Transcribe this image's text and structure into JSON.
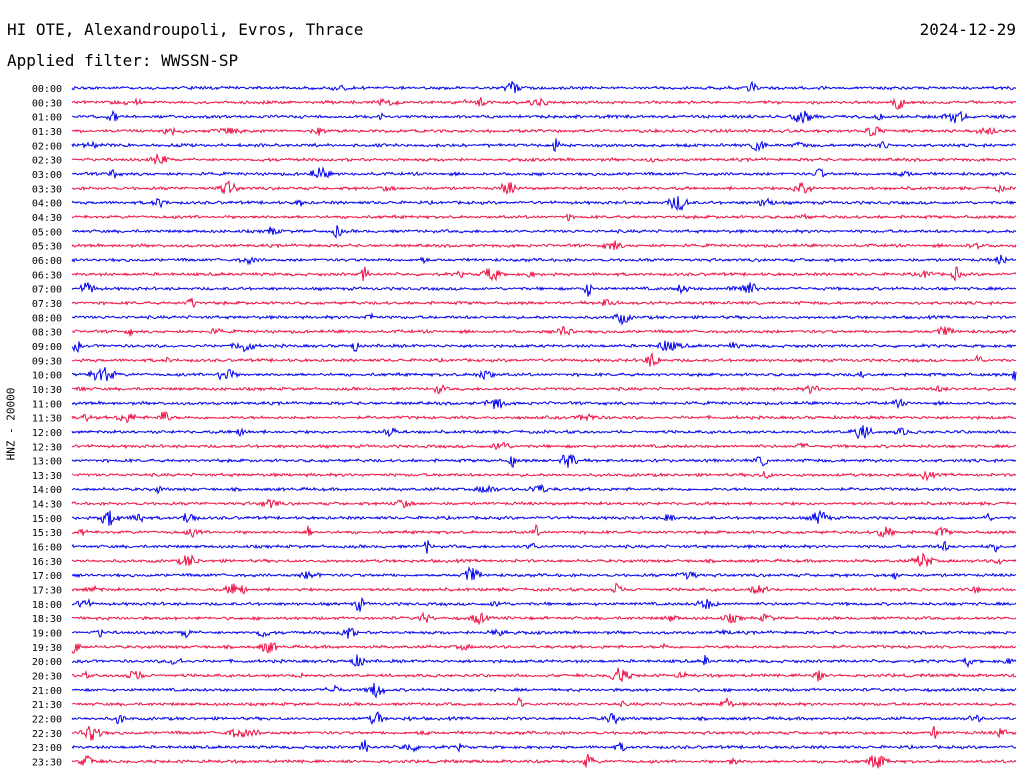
{
  "header": {
    "title": "HI OTE, Alexandroupoli, Evros, Thrace",
    "date": "2024-12-29",
    "filter": "Applied filter: WWSSN-SP"
  },
  "axis": {
    "ylabel": "HNZ - 20000"
  },
  "colors": {
    "even_rows": "#0000ee",
    "odd_rows": "#ee1144"
  },
  "chart_data": {
    "type": "line",
    "title": "HI OTE, Alexandroupoli, Evros, Thrace",
    "ylabel": "HNZ - 20000",
    "xlabel": "",
    "rows": [
      "00:00",
      "00:30",
      "01:00",
      "01:30",
      "02:00",
      "02:30",
      "03:00",
      "03:30",
      "04:00",
      "04:30",
      "05:00",
      "05:30",
      "06:00",
      "06:30",
      "07:00",
      "07:30",
      "08:00",
      "08:30",
      "09:00",
      "09:30",
      "10:00",
      "10:30",
      "11:00",
      "11:30",
      "12:00",
      "12:30",
      "13:00",
      "13:30",
      "14:00",
      "14:30",
      "15:00",
      "15:30",
      "16:00",
      "16:30",
      "17:00",
      "17:30",
      "18:00",
      "18:30",
      "19:00",
      "19:30",
      "20:00",
      "20:30",
      "21:00",
      "21:30",
      "22:00",
      "22:30",
      "23:00",
      "23:30"
    ],
    "row_duration_minutes": 30,
    "row_colors_alternating": [
      "blue",
      "red"
    ],
    "grid": false
  }
}
